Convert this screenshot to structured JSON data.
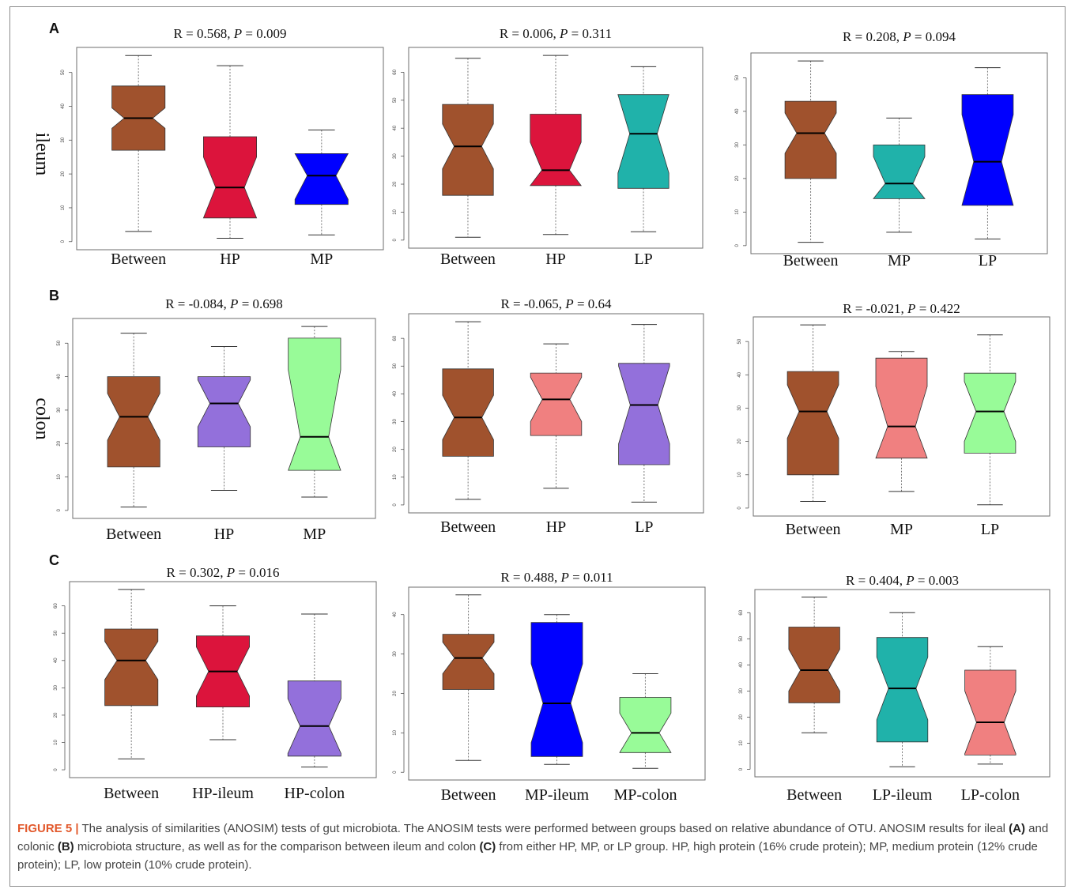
{
  "panels": [
    {
      "letter": "A",
      "tissue": "ileum"
    },
    {
      "letter": "B",
      "tissue": "colon"
    },
    {
      "letter": "C",
      "tissue": ""
    }
  ],
  "chart_data": [
    {
      "type": "box",
      "panel": "A",
      "title": {
        "r": "R = 0.568, ",
        "p": "P",
        "rest": " = 0.009"
      },
      "ylim": [
        0,
        55
      ],
      "ticks": [
        0,
        10,
        20,
        30,
        40,
        50
      ],
      "boxes": [
        {
          "label": "Between",
          "color": "#a0522d",
          "min": 3,
          "q1": 27,
          "median": 36.5,
          "q3": 46,
          "max": 55,
          "notch": 3
        },
        {
          "label": "HP",
          "color": "#dc143c",
          "min": 1,
          "q1": 7,
          "median": 16,
          "q3": 31,
          "max": 52,
          "notch": 9
        },
        {
          "label": "MP",
          "color": "#0000ff",
          "min": 2,
          "q1": 11,
          "median": 19.5,
          "q3": 26,
          "max": 33,
          "notch": 7
        }
      ]
    },
    {
      "type": "box",
      "panel": "A",
      "title": {
        "r": "R = 0.006, ",
        "p": "P",
        "rest": " = 0.311"
      },
      "ylim": [
        0,
        66
      ],
      "ticks": [
        0,
        10,
        20,
        30,
        40,
        50,
        60
      ],
      "boxes": [
        {
          "label": "Between",
          "color": "#a0522d",
          "min": 1,
          "q1": 16,
          "median": 33.5,
          "q3": 48.5,
          "max": 65,
          "notch": 8
        },
        {
          "label": "HP",
          "color": "#dc143c",
          "min": 2,
          "q1": 19.5,
          "median": 25,
          "q3": 45,
          "max": 66,
          "notch": 10
        },
        {
          "label": "LP",
          "color": "#20b2aa",
          "min": 3,
          "q1": 18.5,
          "median": 38,
          "q3": 52,
          "max": 62,
          "notch": 14
        }
      ]
    },
    {
      "type": "box",
      "panel": "A",
      "title": {
        "r": "R = 0.208, ",
        "p": "P",
        "rest": " = 0.094"
      },
      "ylim": [
        0,
        55
      ],
      "ticks": [
        0,
        10,
        20,
        30,
        40,
        50
      ],
      "boxes": [
        {
          "label": "Between",
          "color": "#a0522d",
          "min": 1,
          "q1": 20,
          "median": 33.5,
          "q3": 43,
          "max": 55,
          "notch": 6
        },
        {
          "label": "MP",
          "color": "#20b2aa",
          "min": 4,
          "q1": 14,
          "median": 18.5,
          "q3": 30,
          "max": 38,
          "notch": 8
        },
        {
          "label": "LP",
          "color": "#0000ff",
          "min": 2,
          "q1": 12,
          "median": 25,
          "q3": 45,
          "max": 53,
          "notch": 14
        }
      ]
    },
    {
      "type": "box",
      "panel": "B",
      "title": {
        "r": "R = -0.084, ",
        "p": "P",
        "rest": " = 0.698"
      },
      "ylim": [
        0,
        55
      ],
      "ticks": [
        0,
        10,
        20,
        30,
        40,
        50
      ],
      "boxes": [
        {
          "label": "Between",
          "color": "#a0522d",
          "min": 1,
          "q1": 13,
          "median": 28,
          "q3": 40,
          "max": 53,
          "notch": 7
        },
        {
          "label": "HP",
          "color": "#9370db",
          "min": 6,
          "q1": 19,
          "median": 32,
          "q3": 40,
          "max": 49,
          "notch": 7
        },
        {
          "label": "MP",
          "color": "#98fb98",
          "min": 4,
          "q1": 12,
          "median": 22,
          "q3": 51.5,
          "max": 55,
          "notch": 20
        }
      ]
    },
    {
      "type": "box",
      "panel": "B",
      "title": {
        "r": "R = -0.065, ",
        "p": "P",
        "rest": " = 0.64"
      },
      "ylim": [
        0,
        66
      ],
      "ticks": [
        0,
        10,
        20,
        30,
        40,
        50,
        60
      ],
      "boxes": [
        {
          "label": "Between",
          "color": "#a0522d",
          "min": 2,
          "q1": 17.5,
          "median": 31.5,
          "q3": 49,
          "max": 66,
          "notch": 8
        },
        {
          "label": "HP",
          "color": "#f08080",
          "min": 6,
          "q1": 25,
          "median": 38,
          "q3": 47.5,
          "max": 58,
          "notch": 8
        },
        {
          "label": "LP",
          "color": "#9370db",
          "min": 1,
          "q1": 14.5,
          "median": 36,
          "q3": 51,
          "max": 65,
          "notch": 14
        }
      ]
    },
    {
      "type": "box",
      "panel": "B",
      "title": {
        "r": "R = -0.021, ",
        "p": "P",
        "rest": " = 0.422"
      },
      "ylim": [
        0,
        55
      ],
      "ticks": [
        0,
        10,
        20,
        30,
        40,
        50
      ],
      "boxes": [
        {
          "label": "Between",
          "color": "#a0522d",
          "min": 2,
          "q1": 10,
          "median": 29,
          "q3": 41,
          "max": 55,
          "notch": 8
        },
        {
          "label": "MP",
          "color": "#f08080",
          "min": 5,
          "q1": 15,
          "median": 24.5,
          "q3": 45,
          "max": 47,
          "notch": 12
        },
        {
          "label": "LP",
          "color": "#98fb98",
          "min": 1,
          "q1": 16.5,
          "median": 29,
          "q3": 40.5,
          "max": 52,
          "notch": 9
        }
      ]
    },
    {
      "type": "box",
      "panel": "C",
      "title": {
        "r": "R = 0.302, ",
        "p": "P",
        "rest": " = 0.016"
      },
      "ylim": [
        0,
        66
      ],
      "ticks": [
        0,
        10,
        20,
        30,
        40,
        50,
        60
      ],
      "boxes": [
        {
          "label": "Between",
          "color": "#a0522d",
          "min": 4,
          "q1": 23.5,
          "median": 40,
          "q3": 51.5,
          "max": 66,
          "notch": 7
        },
        {
          "label": "HP-ileum",
          "color": "#dc143c",
          "min": 11,
          "q1": 23,
          "median": 36,
          "q3": 49,
          "max": 60,
          "notch": 9
        },
        {
          "label": "HP-colon",
          "color": "#9370db",
          "min": 1,
          "q1": 5,
          "median": 16,
          "q3": 32.5,
          "max": 57,
          "notch": 10
        }
      ]
    },
    {
      "type": "box",
      "panel": "C",
      "title": {
        "r": "R = 0.488, ",
        "p": "P",
        "rest": " = 0.011"
      },
      "ylim": [
        0,
        45
      ],
      "ticks": [
        0,
        10,
        20,
        30,
        40
      ],
      "boxes": [
        {
          "label": "Between",
          "color": "#a0522d",
          "min": 3,
          "q1": 21,
          "median": 29,
          "q3": 35,
          "max": 45,
          "notch": 4
        },
        {
          "label": "MP-ileum",
          "color": "#0000ff",
          "min": 2,
          "q1": 4,
          "median": 17.5,
          "q3": 38,
          "max": 40,
          "notch": 10
        },
        {
          "label": "MP-colon",
          "color": "#98fb98",
          "min": 1,
          "q1": 5,
          "median": 10,
          "q3": 19,
          "max": 25,
          "notch": 5
        }
      ]
    },
    {
      "type": "box",
      "panel": "C",
      "title": {
        "r": "R = 0.404, ",
        "p": "P",
        "rest": " = 0.003"
      },
      "ylim": [
        0,
        66
      ],
      "ticks": [
        0,
        10,
        20,
        30,
        40,
        50,
        60
      ],
      "boxes": [
        {
          "label": "Between",
          "color": "#a0522d",
          "min": 14,
          "q1": 25.5,
          "median": 38,
          "q3": 54.5,
          "max": 66,
          "notch": 8
        },
        {
          "label": "LP-ileum",
          "color": "#20b2aa",
          "min": 1,
          "q1": 10.5,
          "median": 31,
          "q3": 50.5,
          "max": 60,
          "notch": 12
        },
        {
          "label": "LP-colon",
          "color": "#f08080",
          "min": 2,
          "q1": 5.5,
          "median": 18,
          "q3": 38,
          "max": 47,
          "notch": 12
        }
      ]
    }
  ],
  "caption": {
    "label": "FIGURE 5 |",
    "t1": " The analysis of similarities (ANOSIM) tests of gut microbiota. The ANOSIM tests were performed between groups based on relative abundance of OTU. ANOSIM results for ileal ",
    "a": "(A)",
    "t2": " and colonic ",
    "b": "(B)",
    "t3": " microbiota structure, as well as for the comparison between ileum and colon ",
    "c": "(C)",
    "t4": " from either HP, MP, or LP group. HP, high protein (16% crude protein); MP, medium protein (12% crude protein); LP, low protein (10% crude protein)."
  }
}
